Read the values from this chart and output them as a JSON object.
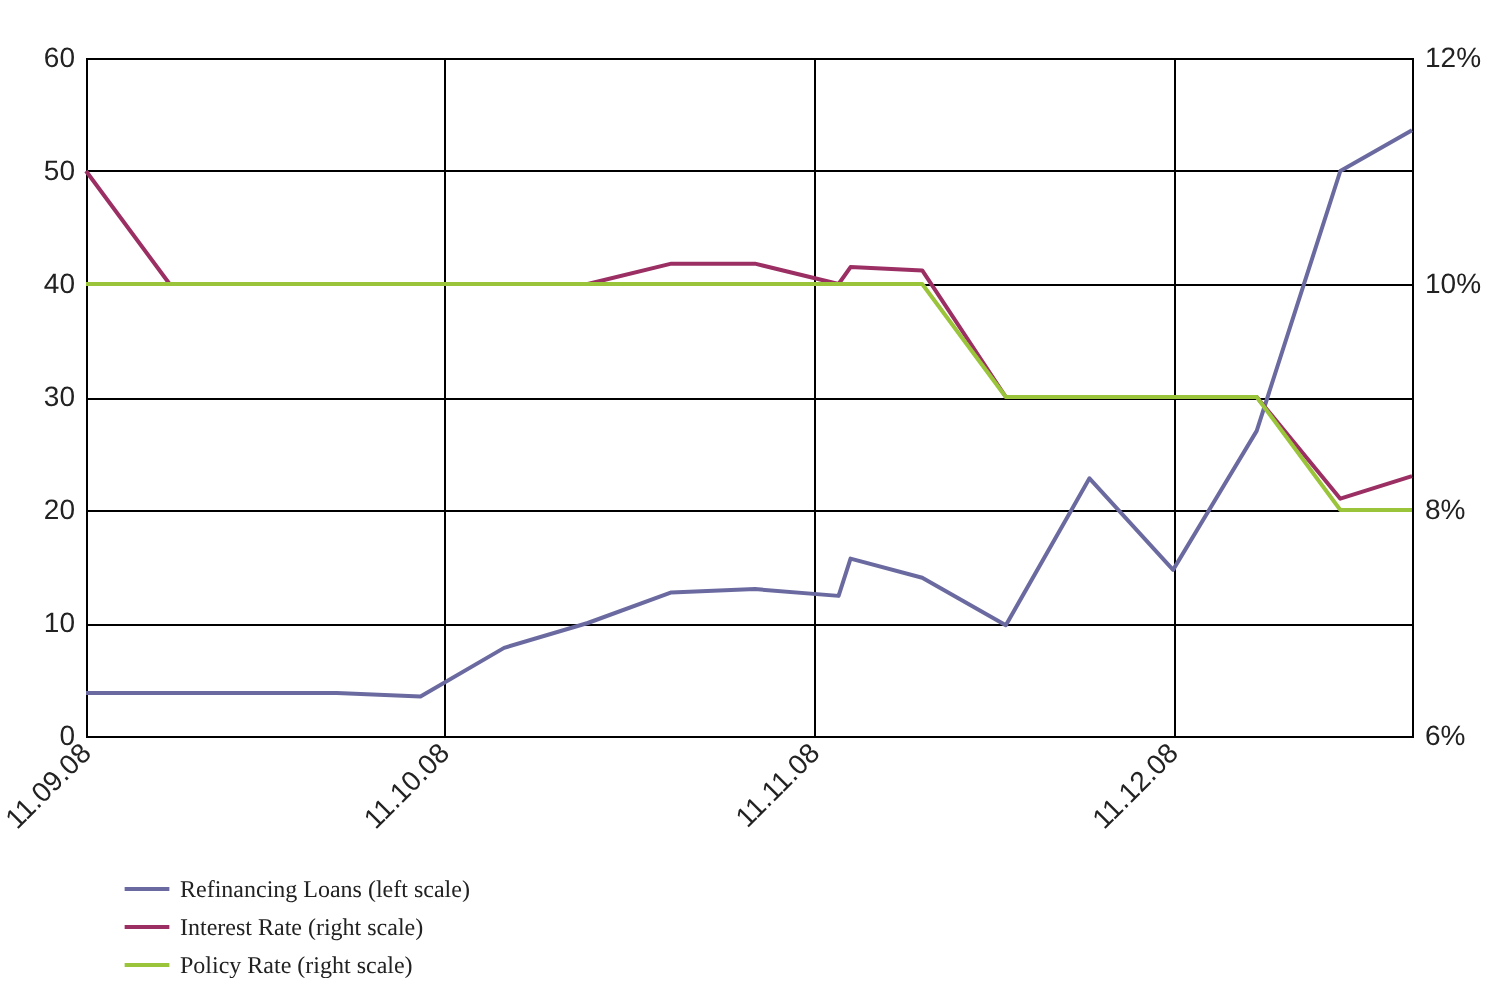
{
  "chart_data": {
    "type": "line",
    "xlim": [
      "2008-09-11",
      "2008-12-31"
    ],
    "xticks": [
      {
        "value": "2008-09-11",
        "label": "11.09.08"
      },
      {
        "value": "2008-10-11",
        "label": "11.10.08"
      },
      {
        "value": "2008-11-11",
        "label": "11.11.08"
      },
      {
        "value": "2008-12-11",
        "label": "11.12.08"
      }
    ],
    "ylim": [
      0,
      60
    ],
    "yticks": [
      0,
      10,
      20,
      30,
      40,
      50,
      60
    ],
    "y2lim": [
      6,
      12
    ],
    "y2ticks": [
      {
        "value": 6,
        "label": "6%"
      },
      {
        "value": 8,
        "label": "8%"
      },
      {
        "value": 10,
        "label": "10%"
      },
      {
        "value": 12,
        "label": "12%"
      }
    ],
    "grid": true,
    "legend": "bottom",
    "line_style": "solid",
    "marker": "none",
    "series": [
      {
        "name": "Refinancing Loans (left scale)",
        "color": "#6b6aa0",
        "x": [
          "2008-09-11",
          "2008-10-02",
          "2008-10-09",
          "2008-10-16",
          "2008-10-23",
          "2008-10-30",
          "2008-11-06",
          "2008-11-13",
          "2008-11-14",
          "2008-11-20",
          "2008-11-27",
          "2008-12-04",
          "2008-12-11",
          "2008-12-18",
          "2008-12-25",
          "2008-12-31"
        ],
        "values": [
          3.8,
          3.8,
          3.5,
          7.8,
          10,
          12.7,
          13,
          12.4,
          15.7,
          14,
          9.8,
          22.8,
          14.7,
          27,
          50,
          53.6
        ]
      },
      {
        "name": "Interest Rate (right scale)",
        "color": "#9b2f63",
        "axis": "y2",
        "x": [
          "2008-09-11",
          "2008-09-18",
          "2008-10-23",
          "2008-10-30",
          "2008-11-06",
          "2008-11-13",
          "2008-11-14",
          "2008-11-20",
          "2008-11-27",
          "2008-12-18",
          "2008-12-25",
          "2008-12-31"
        ],
        "values": [
          11,
          10,
          10,
          10.18,
          10.18,
          10,
          10.15,
          10.12,
          9,
          9,
          8.1,
          8.3
        ]
      },
      {
        "name": "Policy Rate (right scale)",
        "color": "#9ac43a",
        "axis": "y2",
        "x": [
          "2008-09-11",
          "2008-11-20",
          "2008-11-27",
          "2008-12-18",
          "2008-12-25",
          "2008-12-31"
        ],
        "values": [
          10,
          10,
          9,
          9,
          8,
          8
        ]
      }
    ]
  }
}
